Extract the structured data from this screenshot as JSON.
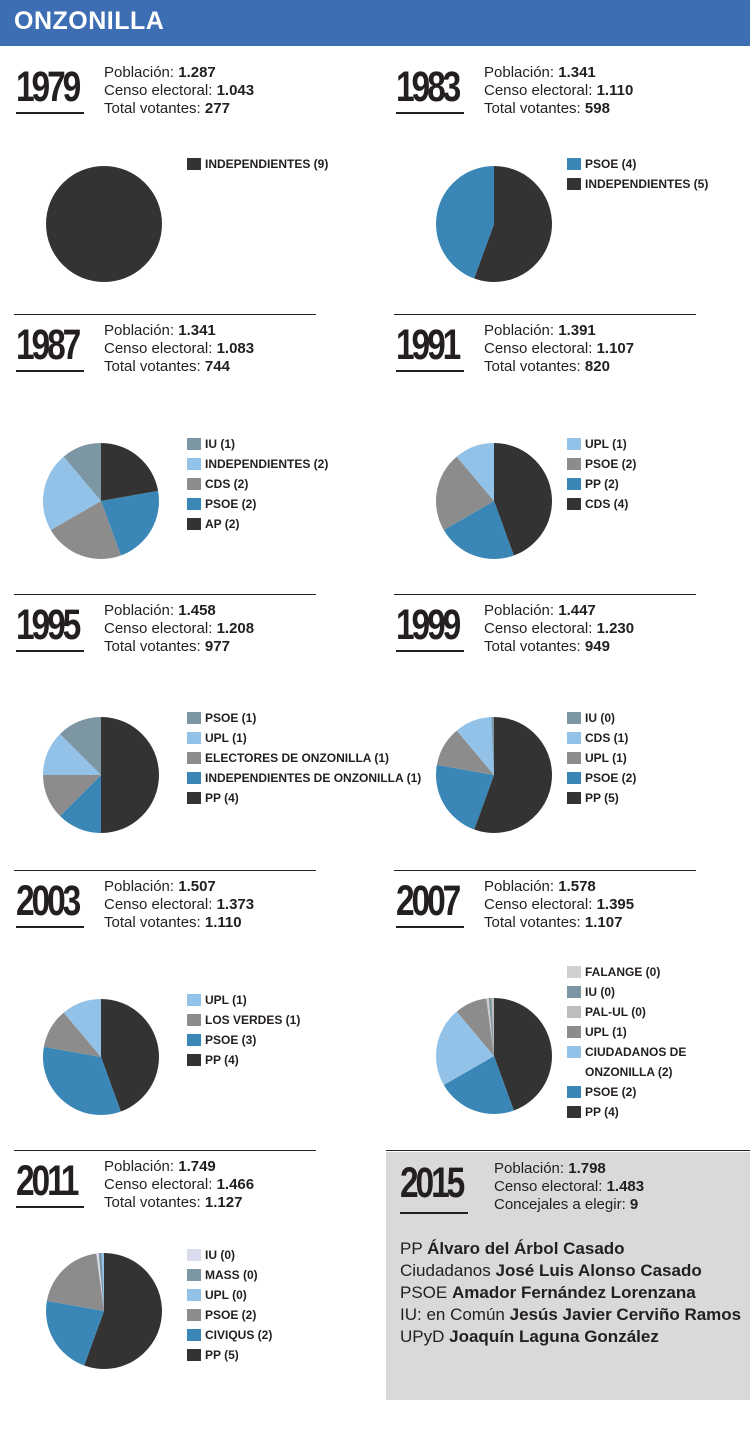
{
  "header": {
    "title": "ONZONILLA"
  },
  "labels": {
    "poblacion": "Población:",
    "censo": "Censo electoral:",
    "votantes": "Total votantes:",
    "concejales": "Concejales a elegir:"
  },
  "colors": {
    "dark": "#333333",
    "blue": "#3a87b7",
    "lightblue": "#93c2e8",
    "gray": "#8c8c8c",
    "slate": "#7c96a3",
    "pale": "#cfcfcf",
    "lavender": "#dcdcef",
    "header": "#3d6db2"
  },
  "chart_data": [
    {
      "type": "pie",
      "year": "1979",
      "poblacion": "1.287",
      "censo": "1.043",
      "votantes": "277",
      "slices": [
        {
          "label": "INDEPENDIENTES (9)",
          "value": 9,
          "color": "#333333"
        }
      ]
    },
    {
      "type": "pie",
      "year": "1983",
      "poblacion": "1.341",
      "censo": "1.110",
      "votantes": "598",
      "slices": [
        {
          "label": "PSOE (4)",
          "value": 4,
          "color": "#3a87b7"
        },
        {
          "label": "INDEPENDIENTES (5)",
          "value": 5,
          "color": "#333333"
        }
      ]
    },
    {
      "type": "pie",
      "year": "1987",
      "poblacion": "1.341",
      "censo": "1.083",
      "votantes": "744",
      "slices": [
        {
          "label": "IU (1)",
          "value": 1,
          "color": "#7c96a3"
        },
        {
          "label": "INDEPENDIENTES (2)",
          "value": 2,
          "color": "#93c2e8"
        },
        {
          "label": "CDS (2)",
          "value": 2,
          "color": "#8c8c8c"
        },
        {
          "label": "PSOE (2)",
          "value": 2,
          "color": "#3a87b7"
        },
        {
          "label": "AP (2)",
          "value": 2,
          "color": "#333333"
        }
      ]
    },
    {
      "type": "pie",
      "year": "1991",
      "poblacion": "1.391",
      "censo": "1.107",
      "votantes": "820",
      "slices": [
        {
          "label": "UPL (1)",
          "value": 1,
          "color": "#93c2e8"
        },
        {
          "label": "PSOE (2)",
          "value": 2,
          "color": "#8c8c8c"
        },
        {
          "label": "PP (2)",
          "value": 2,
          "color": "#3a87b7"
        },
        {
          "label": "CDS (4)",
          "value": 4,
          "color": "#333333"
        }
      ]
    },
    {
      "type": "pie",
      "year": "1995",
      "poblacion": "1.458",
      "censo": "1.208",
      "votantes": "977",
      "slices": [
        {
          "label": "PSOE (1)",
          "value": 1,
          "color": "#7c96a3"
        },
        {
          "label": "UPL (1)",
          "value": 1,
          "color": "#93c2e8"
        },
        {
          "label": "ELECTORES DE ONZONILLA (1)",
          "value": 1,
          "color": "#8c8c8c"
        },
        {
          "label": "INDEPENDIENTES DE ONZONILLA (1)",
          "value": 1,
          "color": "#3a87b7"
        },
        {
          "label": "PP (4)",
          "value": 4,
          "color": "#333333"
        }
      ]
    },
    {
      "type": "pie",
      "year": "1999",
      "poblacion": "1.447",
      "censo": "1.230",
      "votantes": "949",
      "slices": [
        {
          "label": "IU (0)",
          "value": 0,
          "color": "#7c96a3"
        },
        {
          "label": "CDS (1)",
          "value": 1,
          "color": "#93c2e8"
        },
        {
          "label": "UPL (1)",
          "value": 1,
          "color": "#8c8c8c"
        },
        {
          "label": "PSOE (2)",
          "value": 2,
          "color": "#3a87b7"
        },
        {
          "label": "PP (5)",
          "value": 5,
          "color": "#333333"
        }
      ]
    },
    {
      "type": "pie",
      "year": "2003",
      "poblacion": "1.507",
      "censo": "1.373",
      "votantes": "1.110",
      "slices": [
        {
          "label": "UPL (1)",
          "value": 1,
          "color": "#93c2e8"
        },
        {
          "label": "LOS VERDES (1)",
          "value": 1,
          "color": "#8c8c8c"
        },
        {
          "label": "PSOE (3)",
          "value": 3,
          "color": "#3a87b7"
        },
        {
          "label": "PP (4)",
          "value": 4,
          "color": "#333333"
        }
      ]
    },
    {
      "type": "pie",
      "year": "2007",
      "poblacion": "1.578",
      "censo": "1.395",
      "votantes": "1.107",
      "slices": [
        {
          "label": "FALANGE (0)",
          "value": 0,
          "color": "#cfcfcf"
        },
        {
          "label": "IU (0)",
          "value": 0,
          "color": "#7c96a3"
        },
        {
          "label": "PAL-UL (0)",
          "value": 0,
          "color": "#bdbdbd"
        },
        {
          "label": "UPL (1)",
          "value": 1,
          "color": "#8c8c8c"
        },
        {
          "label": "CIUDADANOS DE ONZONILLA (2)",
          "value": 2,
          "color": "#93c2e8"
        },
        {
          "label": "PSOE (2)",
          "value": 2,
          "color": "#3a87b7"
        },
        {
          "label": "PP (4)",
          "value": 4,
          "color": "#333333"
        }
      ]
    },
    {
      "type": "pie",
      "year": "2011",
      "poblacion": "1.749",
      "censo": "1.466",
      "votantes": "1.127",
      "slices": [
        {
          "label": "IU (0)",
          "value": 0,
          "color": "#dcdcef"
        },
        {
          "label": "MASS (0)",
          "value": 0,
          "color": "#7c96a3"
        },
        {
          "label": "UPL (0)",
          "value": 0,
          "color": "#93c2e8"
        },
        {
          "label": "PSOE (2)",
          "value": 2,
          "color": "#8c8c8c"
        },
        {
          "label": "CIVIQUS (2)",
          "value": 2,
          "color": "#3a87b7"
        },
        {
          "label": "PP (5)",
          "value": 5,
          "color": "#333333"
        }
      ]
    }
  ],
  "y2015": {
    "year": "2015",
    "poblacion": "1.798",
    "censo": "1.483",
    "concejales": "9",
    "candidatos": [
      {
        "party": "PP",
        "name": "Álvaro del Árbol Casado"
      },
      {
        "party": "Ciudadanos",
        "name": "José Luis Alonso Casado"
      },
      {
        "party": "PSOE",
        "name": "Amador Fernández Lorenzana"
      },
      {
        "party": "IU: en Común",
        "name": "Jesús Javier Cerviño Ramos"
      },
      {
        "party": "UPyD",
        "name": "Joaquín Laguna González"
      }
    ]
  }
}
